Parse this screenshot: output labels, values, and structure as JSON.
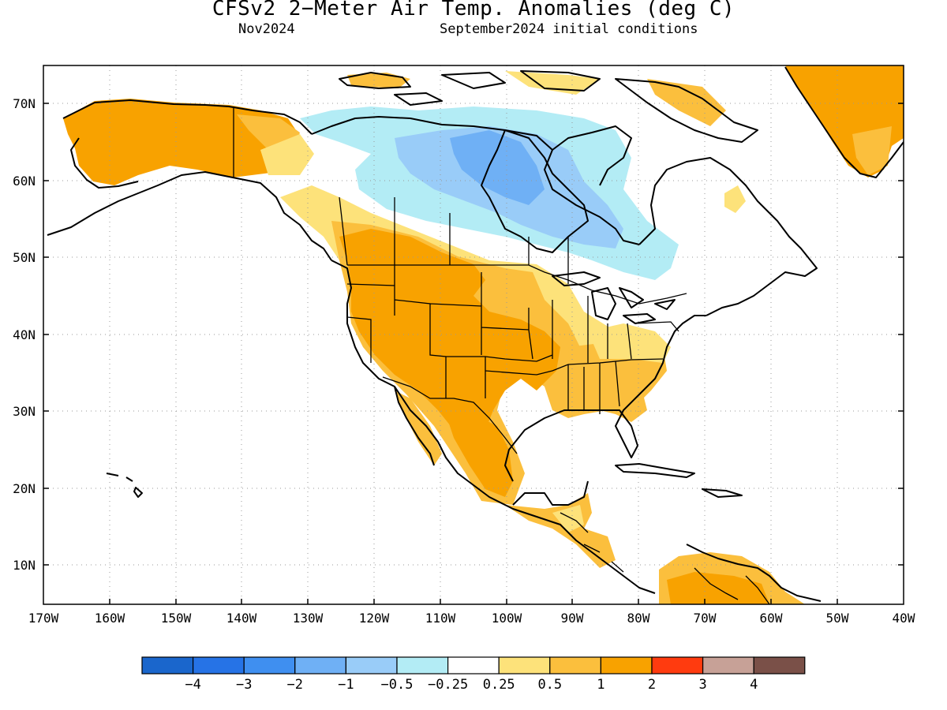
{
  "title": "CFSv2 2−Meter Air Temp. Anomalies (deg C)",
  "valid_month": "Nov2024",
  "initial_conditions": "September2024 initial conditions",
  "lat_labels": [
    "70N",
    "60N",
    "50N",
    "40N",
    "30N",
    "20N",
    "10N"
  ],
  "lon_labels": [
    "170W",
    "160W",
    "150W",
    "140W",
    "130W",
    "120W",
    "110W",
    "100W",
    "90W",
    "80W",
    "70W",
    "60W",
    "50W",
    "40W"
  ],
  "colorbar": {
    "colors": [
      "#1a66cc",
      "#2673e6",
      "#3f8ff0",
      "#6fb0f5",
      "#99ccf8",
      "#b3ecf5",
      "#ffffff",
      "#fde27a",
      "#fbbf3d",
      "#f8a200",
      "#ff3b0f",
      "#c7a197",
      "#7a5048"
    ],
    "labels": [
      "−4",
      "−3",
      "−2",
      "−1",
      "−0.5",
      "−0.25",
      "0.25",
      "0.5",
      "1",
      "2",
      "3",
      "4"
    ]
  },
  "anomaly_regions": [
    {
      "name": "Alaska",
      "level": "1 to 2"
    },
    {
      "name": "Western United States",
      "level": "1 to 2"
    },
    {
      "name": "Southern Plains and Mexico",
      "level": "1 to 2"
    },
    {
      "name": "Southeast United States",
      "level": "0.5 to 1"
    },
    {
      "name": "Greenland",
      "level": "1 to 2"
    },
    {
      "name": "Northern South America",
      "level": "1 to 2"
    },
    {
      "name": "Central Canada / Hudson Bay",
      "level": "−1 to −0.25"
    }
  ]
}
